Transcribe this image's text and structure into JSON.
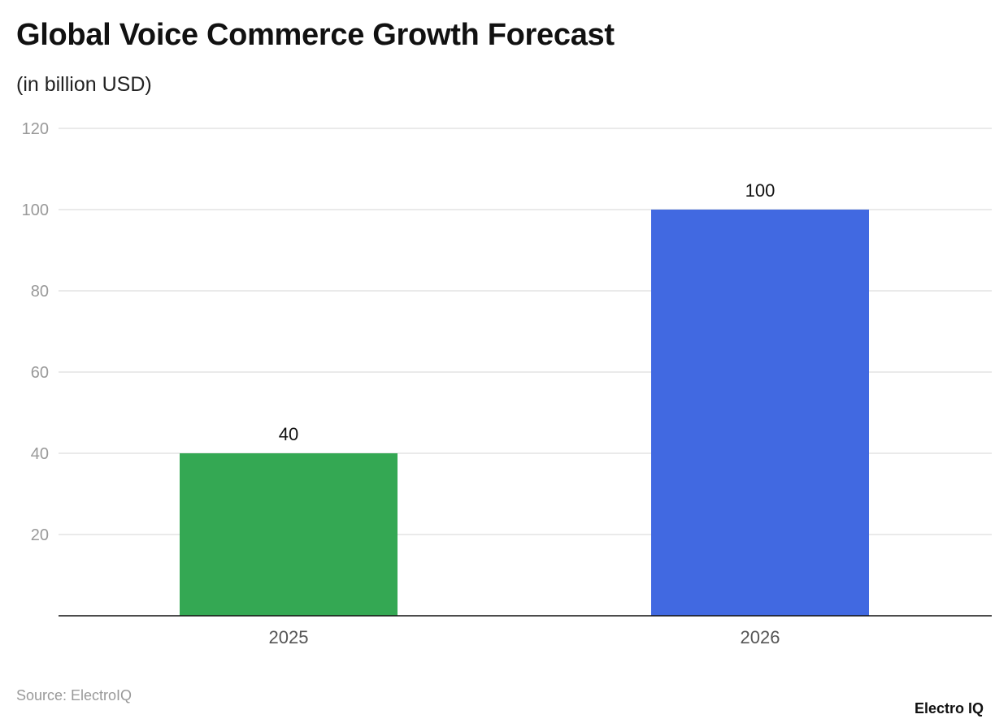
{
  "title": "Global Voice Commerce Growth Forecast",
  "subtitle": "(in billion USD)",
  "source": "Source: ElectroIQ",
  "logo": "Electro IQ",
  "chart_data": {
    "type": "bar",
    "categories": [
      "2025",
      "2026"
    ],
    "values": [
      40,
      100
    ],
    "colors": [
      "#34a853",
      "#4169e1"
    ],
    "ylim": [
      0,
      120
    ],
    "yticks": [
      20,
      40,
      60,
      80,
      100,
      120
    ],
    "grid": true,
    "data_labels": true
  }
}
